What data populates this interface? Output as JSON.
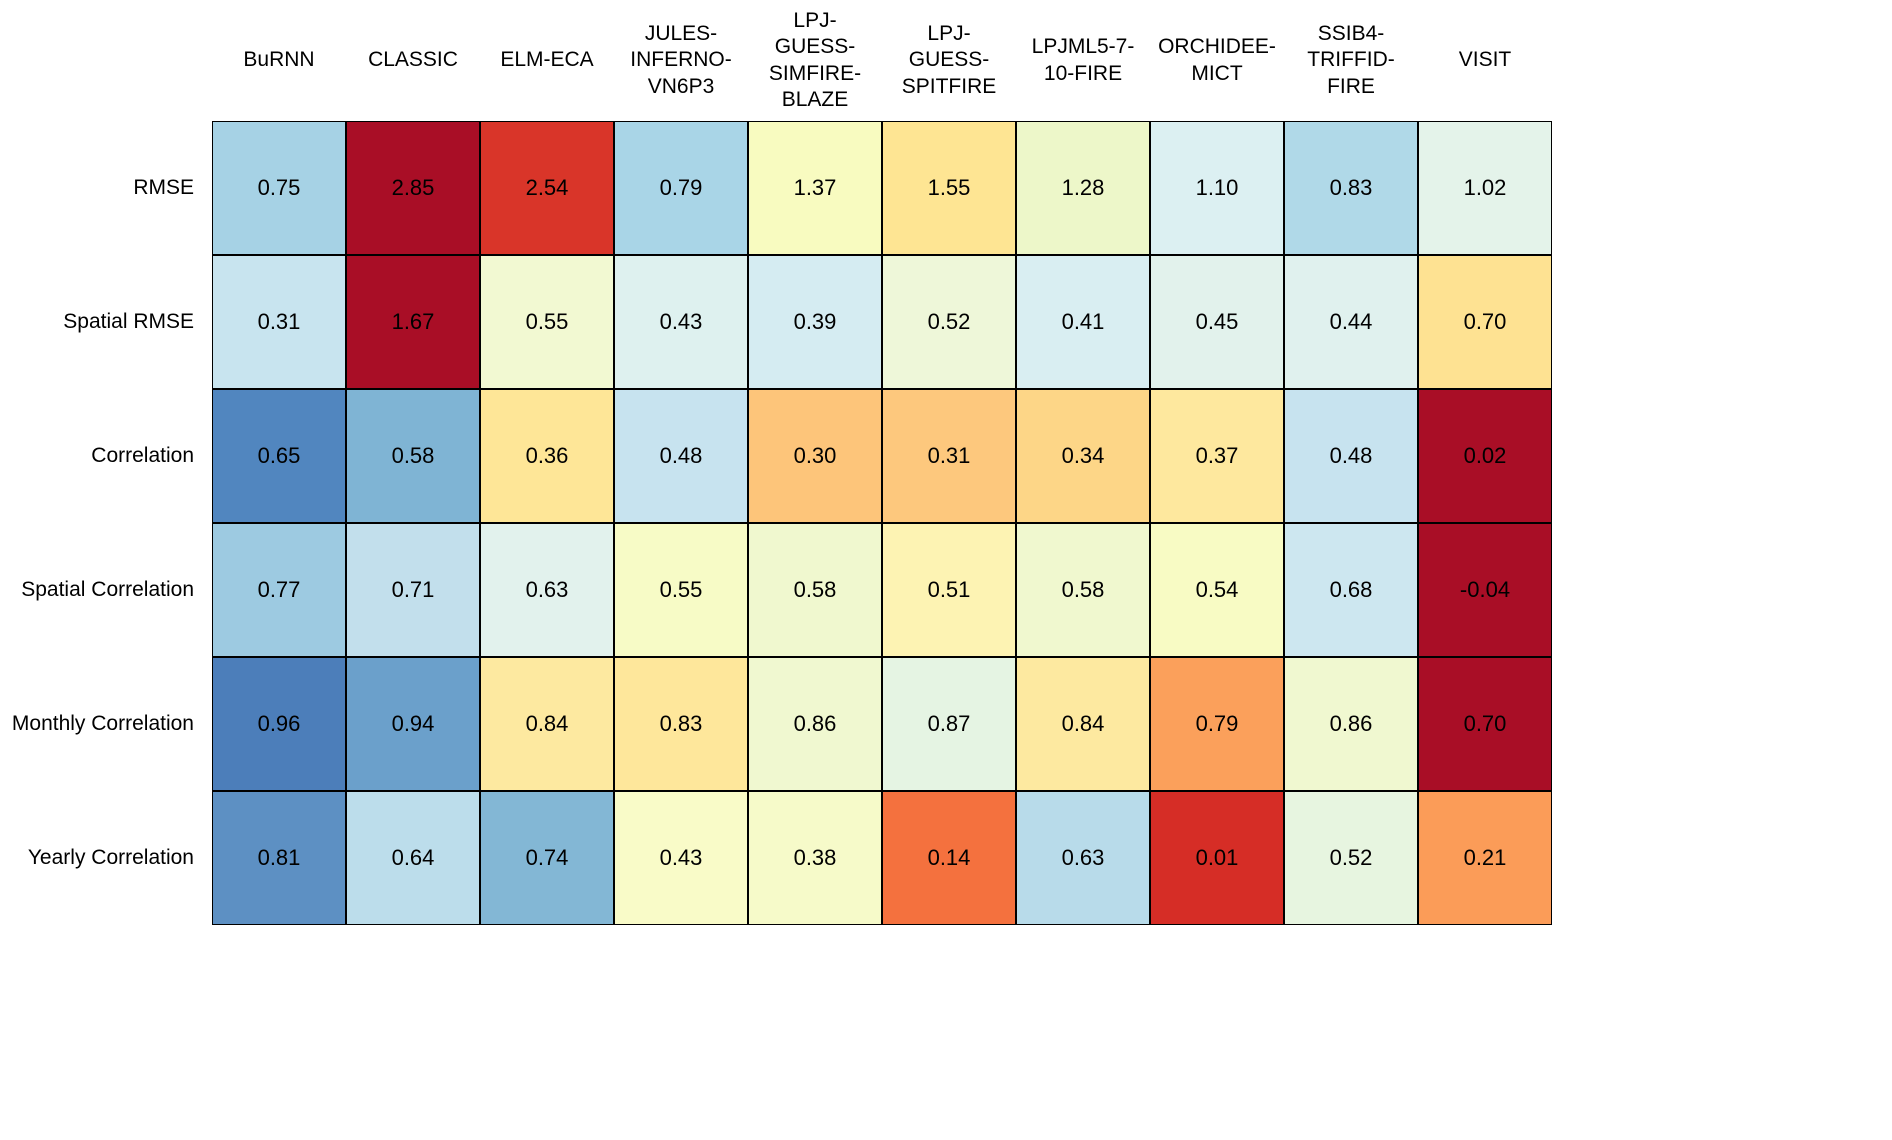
{
  "figure": {
    "background": "#ffffff",
    "grid_line_color": "#000000",
    "text_color": "#000000"
  },
  "chart_data": {
    "type": "heatmap",
    "title": "",
    "colormap": "RdYlBu",
    "legend": "none",
    "columns": [
      {
        "label": "BuRNN"
      },
      {
        "label": "CLASSIC"
      },
      {
        "label": "ELM-ECA"
      },
      {
        "label": "JULES-\nINFERNO-\nVN6P3"
      },
      {
        "label": "LPJ-\nGUESS-\nSIMFIRE-\nBLAZE"
      },
      {
        "label": "LPJ-\nGUESS-\nSPITFIRE"
      },
      {
        "label": "LPJML5-7-\n10-FIRE"
      },
      {
        "label": "ORCHIDEE-\nMICT"
      },
      {
        "label": "SSIB4-\nTRIFFID-\nFIRE"
      },
      {
        "label": "VISIT"
      }
    ],
    "rows": [
      {
        "label": "RMSE",
        "values": [
          "0.75",
          "2.85",
          "2.54",
          "0.79",
          "1.37",
          "1.55",
          "1.28",
          "1.10",
          "0.83",
          "1.02"
        ],
        "colors": [
          "#a6d2e5",
          "#a90e26",
          "#d93529",
          "#a9d5e7",
          "#f8fbc0",
          "#fee593",
          "#edf7c9",
          "#dcf0f2",
          "#b0d9e8",
          "#e4f3ea"
        ]
      },
      {
        "label": "Spatial RMSE",
        "values": [
          "0.31",
          "1.67",
          "0.55",
          "0.43",
          "0.39",
          "0.52",
          "0.41",
          "0.45",
          "0.44",
          "0.70"
        ],
        "colors": [
          "#c8e4ef",
          "#a90e26",
          "#f2f9d2",
          "#def1ef",
          "#d5ecf2",
          "#eef7d9",
          "#d9eef2",
          "#e2f2ec",
          "#e0f1ee",
          "#fee292"
        ]
      },
      {
        "label": "Correlation",
        "values": [
          "0.65",
          "0.58",
          "0.36",
          "0.48",
          "0.30",
          "0.31",
          "0.34",
          "0.37",
          "0.48",
          "0.02"
        ],
        "colors": [
          "#5186bf",
          "#7fb4d4",
          "#fee697",
          "#c7e3ef",
          "#fdc57a",
          "#fdc87d",
          "#fdd687",
          "#fee89e",
          "#c7e3ef",
          "#a90e26"
        ]
      },
      {
        "label": "Spatial Correlation",
        "values": [
          "0.77",
          "0.71",
          "0.63",
          "0.55",
          "0.58",
          "0.51",
          "0.58",
          "0.54",
          "0.68",
          "-0.04"
        ],
        "colors": [
          "#9dcae1",
          "#c2dfec",
          "#e2f2ed",
          "#f7fbc6",
          "#f0f8cf",
          "#fdf3b3",
          "#f0f8cf",
          "#f8fbc4",
          "#cde7f0",
          "#a90e26"
        ]
      },
      {
        "label": "Monthly Correlation",
        "values": [
          "0.96",
          "0.94",
          "0.84",
          "0.83",
          "0.86",
          "0.87",
          "0.84",
          "0.79",
          "0.86",
          "0.70"
        ],
        "colors": [
          "#4c7eba",
          "#6ba0cb",
          "#fde9a0",
          "#fee79b",
          "#f0f8d0",
          "#e5f4e3",
          "#fde9a0",
          "#fba05b",
          "#f0f8d0",
          "#a90e26"
        ]
      },
      {
        "label": "Yearly Correlation",
        "values": [
          "0.81",
          "0.64",
          "0.74",
          "0.43",
          "0.38",
          "0.14",
          "0.63",
          "0.01",
          "0.52",
          "0.21"
        ],
        "colors": [
          "#5d90c3",
          "#bcddeb",
          "#83b7d5",
          "#f9fbc8",
          "#f6fac9",
          "#f4713e",
          "#b8dbea",
          "#d62d26",
          "#e7f5e0",
          "#fb9c58"
        ]
      }
    ]
  }
}
